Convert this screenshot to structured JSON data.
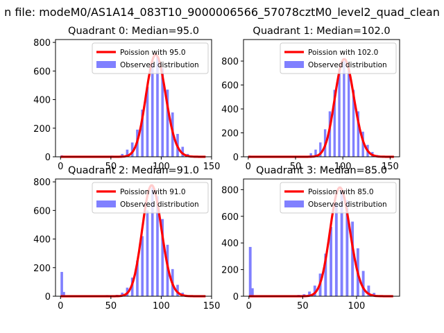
{
  "figure_title": "n file: modeM0/AS1A14_083T10_9000006566_57078cztM0_level2_quad_clean",
  "chart_data": [
    {
      "type": "bar",
      "title": "Quadrant 0: Median=95.0",
      "median": 95.0,
      "xlim": [
        -5,
        150
      ],
      "ylim": [
        0,
        820
      ],
      "xticks": [
        0,
        50,
        100,
        150
      ],
      "yticks": [
        0,
        200,
        400,
        600,
        800
      ],
      "legend": {
        "line": "Poission with 95.0",
        "bars": "Observed distribution",
        "position": "top-right"
      },
      "hist_x": [
        0,
        50,
        60,
        65,
        70,
        75,
        80,
        85,
        90,
        95,
        100,
        105,
        110,
        115,
        120,
        125,
        130
      ],
      "hist_y": [
        10,
        8,
        20,
        50,
        100,
        190,
        330,
        490,
        650,
        700,
        620,
        470,
        310,
        160,
        70,
        20,
        5
      ]
    },
    {
      "type": "bar",
      "title": "Quadrant 1: Median=102.0",
      "median": 102.0,
      "xlim": [
        -5,
        160
      ],
      "ylim": [
        0,
        980
      ],
      "xticks": [
        0,
        50,
        100,
        150
      ],
      "yticks": [
        0,
        200,
        400,
        600,
        800
      ],
      "legend": {
        "line": "Poission with 102.0",
        "bars": "Observed distribution",
        "position": "top-right"
      },
      "hist_x": [
        0,
        55,
        65,
        70,
        75,
        80,
        85,
        90,
        95,
        100,
        105,
        110,
        115,
        120,
        125,
        130,
        135,
        140
      ],
      "hist_y": [
        10,
        8,
        30,
        60,
        120,
        230,
        380,
        560,
        730,
        800,
        720,
        560,
        380,
        210,
        100,
        40,
        15,
        5
      ]
    },
    {
      "type": "bar",
      "title": "Quadrant 2: Median=91.0",
      "median": 91.0,
      "xlim": [
        -5,
        150
      ],
      "ylim": [
        0,
        820
      ],
      "xticks": [
        0,
        50,
        100,
        150
      ],
      "yticks": [
        0,
        200,
        400,
        600,
        800
      ],
      "legend": {
        "line": "Poission with 91.0",
        "bars": "Observed distribution",
        "position": "top-right"
      },
      "hist_x": [
        0,
        2,
        45,
        55,
        60,
        65,
        70,
        75,
        80,
        85,
        90,
        95,
        100,
        105,
        110,
        115,
        120,
        125
      ],
      "hist_y": [
        170,
        30,
        8,
        10,
        25,
        60,
        130,
        250,
        420,
        600,
        760,
        700,
        540,
        360,
        190,
        80,
        25,
        8
      ]
    },
    {
      "type": "bar",
      "title": "Quadrant 3: Median=85.0",
      "median": 85.0,
      "xlim": [
        -5,
        140
      ],
      "ylim": [
        0,
        880
      ],
      "xticks": [
        0,
        50,
        100
      ],
      "yticks": [
        0,
        200,
        400,
        600,
        800
      ],
      "legend": {
        "line": "Poission with 85.0",
        "bars": "Observed distribution",
        "position": "top-right"
      },
      "hist_x": [
        0,
        2,
        45,
        50,
        55,
        60,
        65,
        70,
        75,
        80,
        85,
        90,
        95,
        100,
        105,
        110,
        115,
        120
      ],
      "hist_y": [
        370,
        60,
        10,
        15,
        35,
        80,
        170,
        320,
        520,
        700,
        800,
        720,
        560,
        360,
        190,
        80,
        25,
        8
      ]
    }
  ],
  "colors": {
    "bars": "#8080ff",
    "line": "#ff0000",
    "axis": "#000000"
  }
}
